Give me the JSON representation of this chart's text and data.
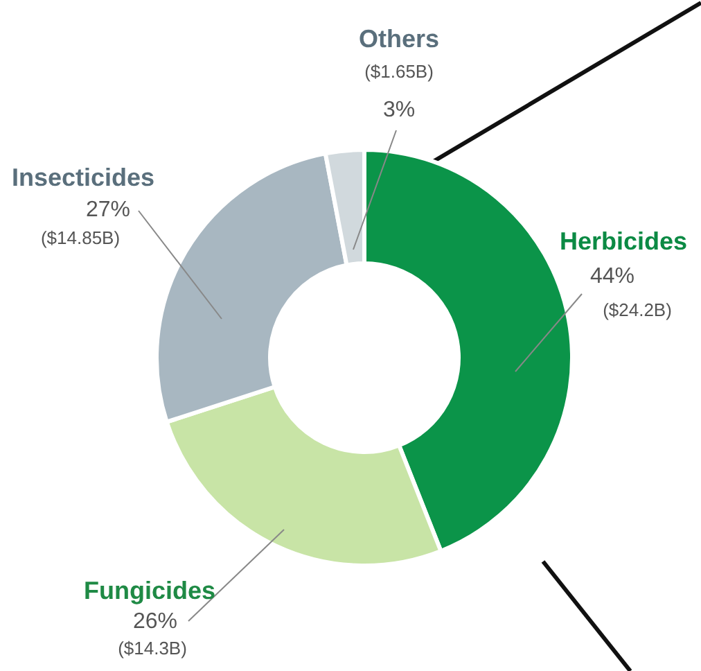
{
  "chart_data": {
    "type": "donut",
    "categories": [
      "Herbicides",
      "Fungicides",
      "Insecticides",
      "Others"
    ],
    "values": [
      44,
      26,
      27,
      3
    ],
    "colors": [
      "#0b9449",
      "#c8e4a6",
      "#a8b7c1",
      "#d1d9dd"
    ],
    "value_labels": [
      "44%\n($24.2B)",
      "26%\n($14.3B)",
      "27%\n($14.85B)",
      "($1.65B)\n3%"
    ]
  }
}
